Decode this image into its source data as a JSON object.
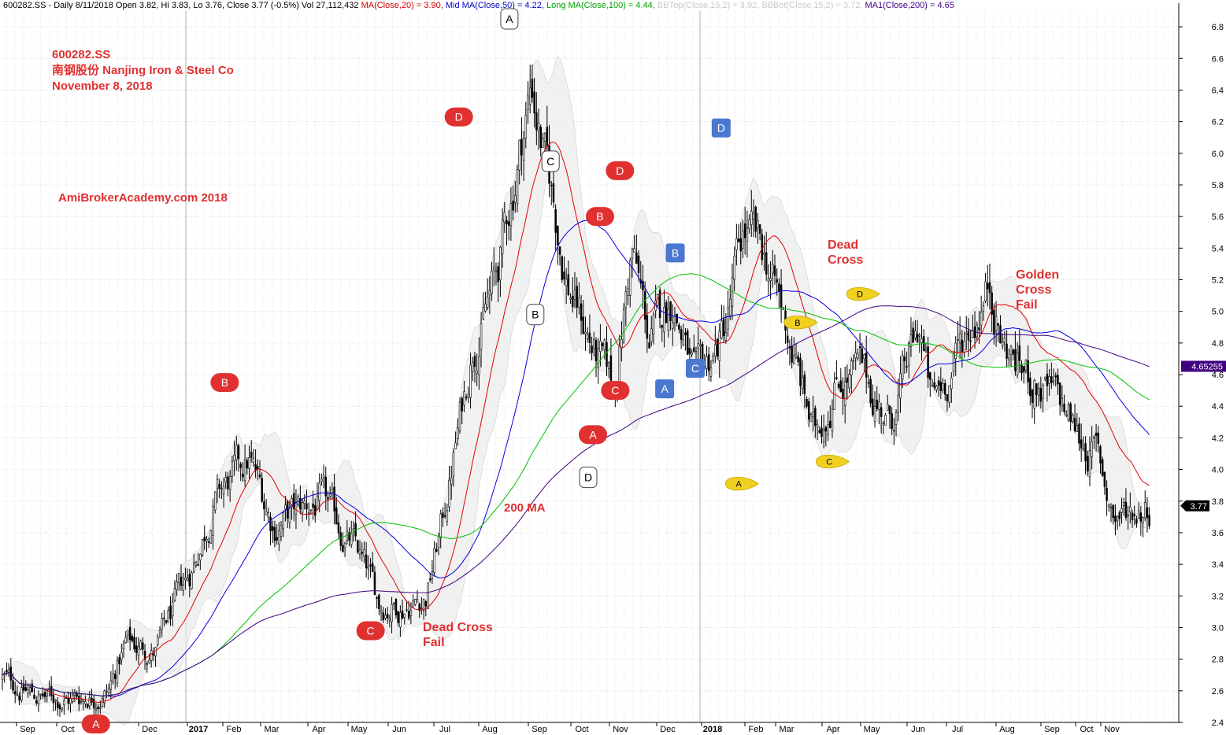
{
  "header": {
    "segments": [
      {
        "text": "600282.SS - Daily 8/11/2018 Open 3.82, Hi 3.83, Lo 3.76, Close 3.77 (-0.5%) Vol 27,112,432 ",
        "color": "#000000"
      },
      {
        "text": "MA(Close,20) = 3.90, ",
        "color": "#d00000"
      },
      {
        "text": "Mid MA(Close,50) = 4.22, ",
        "color": "#0000c0"
      },
      {
        "text": "Long MA(Close,100) = 4.44, ",
        "color": "#00a000"
      },
      {
        "text": "BBTop(Close,15,2) = 3.92, ",
        "color": "#c8c8c8"
      },
      {
        "text": "BBBot(Close,15,2) = 3.72, ",
        "color": "#c8c8c8"
      },
      {
        "text": "MA1(Close,200) = 4.65",
        "color": "#400080"
      }
    ]
  },
  "annotations": {
    "title_lines": [
      "600282.SS",
      "南钢股份  Nanjing Iron & Steel Co",
      "November 8, 2018"
    ],
    "site": "AmiBrokerAcademy.com  2018",
    "ma200": "200 MA",
    "dead_cross_fail": [
      "Dead Cross",
      "Fail"
    ],
    "dead_cross": [
      "Dead",
      "Cross"
    ],
    "golden_cross_fail": [
      "Golden",
      "Cross",
      "Fail"
    ]
  },
  "colors": {
    "ma20": "#e00000",
    "ma50": "#0000e0",
    "ma100": "#00c000",
    "ma200": "#400080",
    "annotation_text": "#e03030",
    "red_marker": "#e03030",
    "blue_marker": "#4a78d0",
    "yellow_marker": "#f0d020",
    "last_ma200_tag": "#400080",
    "last_close_tag": "#000000"
  },
  "chart_data": {
    "type": "candlestick",
    "symbol": "600282.SS",
    "ylim": [
      2.4,
      6.9
    ],
    "y_ticks": [
      2.4,
      2.6,
      2.8,
      3.0,
      3.2,
      3.4,
      3.6,
      3.8,
      4.0,
      4.2,
      4.4,
      4.6,
      4.8,
      5.0,
      5.2,
      5.4,
      5.6,
      5.8,
      6.0,
      6.2,
      6.4,
      6.6,
      6.8
    ],
    "x_labels": [
      {
        "label": "Sep",
        "bold": false
      },
      {
        "label": "Oct",
        "bold": false
      },
      {
        "label": "Dec",
        "bold": false
      },
      {
        "label": "2017",
        "bold": true
      },
      {
        "label": "Feb",
        "bold": false
      },
      {
        "label": "Mar",
        "bold": false
      },
      {
        "label": "Apr",
        "bold": false
      },
      {
        "label": "May",
        "bold": false
      },
      {
        "label": "Jun",
        "bold": false
      },
      {
        "label": "Jul",
        "bold": false
      },
      {
        "label": "Aug",
        "bold": false
      },
      {
        "label": "Sep",
        "bold": false
      },
      {
        "label": "Oct",
        "bold": false
      },
      {
        "label": "Nov",
        "bold": false
      },
      {
        "label": "Dec",
        "bold": false
      },
      {
        "label": "2018",
        "bold": true
      },
      {
        "label": "Feb",
        "bold": false
      },
      {
        "label": "Mar",
        "bold": false
      },
      {
        "label": "Apr",
        "bold": false
      },
      {
        "label": "May",
        "bold": false
      },
      {
        "label": "Jun",
        "bold": false
      },
      {
        "label": "Jul",
        "bold": false
      },
      {
        "label": "Aug",
        "bold": false
      },
      {
        "label": "Sep",
        "bold": false
      },
      {
        "label": "Oct",
        "bold": false
      },
      {
        "label": "Nov",
        "bold": false
      }
    ],
    "price_path": [
      [
        0,
        2.68
      ],
      [
        0.03,
        2.56
      ],
      [
        0.06,
        2.55
      ],
      [
        0.09,
        2.6
      ],
      [
        0.105,
        2.9
      ],
      [
        0.13,
        2.85
      ],
      [
        0.16,
        3.35
      ],
      [
        0.18,
        3.8
      ],
      [
        0.21,
        4.05
      ],
      [
        0.23,
        3.65
      ],
      [
        0.27,
        3.8
      ],
      [
        0.3,
        3.5
      ],
      [
        0.32,
        3.15
      ],
      [
        0.34,
        3.15
      ],
      [
        0.36,
        3.2
      ],
      [
        0.375,
        3.7
      ],
      [
        0.4,
        4.8
      ],
      [
        0.42,
        5.2
      ],
      [
        0.45,
        6.45
      ],
      [
        0.46,
        6.0
      ],
      [
        0.48,
        5.2
      ],
      [
        0.505,
        4.7
      ],
      [
        0.52,
        4.5
      ],
      [
        0.535,
        5.4
      ],
      [
        0.55,
        4.8
      ],
      [
        0.57,
        5.1
      ],
      [
        0.59,
        4.5
      ],
      [
        0.615,
        4.9
      ],
      [
        0.63,
        5.5
      ],
      [
        0.65,
        5.3
      ],
      [
        0.67,
        4.8
      ],
      [
        0.69,
        4.2
      ],
      [
        0.71,
        4.6
      ],
      [
        0.73,
        4.6
      ],
      [
        0.755,
        4.3
      ],
      [
        0.78,
        4.9
      ],
      [
        0.79,
        4.4
      ],
      [
        0.81,
        4.7
      ],
      [
        0.84,
        5.2
      ],
      [
        0.85,
        4.8
      ],
      [
        0.87,
        4.6
      ],
      [
        0.9,
        4.4
      ],
      [
        0.915,
        4.2
      ],
      [
        0.93,
        4.1
      ],
      [
        0.945,
        3.7
      ],
      [
        0.96,
        3.75
      ],
      [
        0.975,
        3.78
      ]
    ],
    "bollinger": {
      "period": 15,
      "std": 2
    },
    "moving_averages": [
      {
        "name": "MA(Close,20)",
        "period": 20,
        "last": 3.9
      },
      {
        "name": "Mid MA(Close,50)",
        "period": 50,
        "last": 4.22
      },
      {
        "name": "Long MA(Close,100)",
        "period": 100,
        "last": 4.44
      },
      {
        "name": "MA1(Close,200)",
        "period": 200,
        "last": 4.65
      }
    ],
    "last_ma200_label": "4.65255",
    "last_close_label": "3.77",
    "markers": [
      {
        "label": "A",
        "style": "red",
        "pos": [
          0.0795,
          2.39
        ]
      },
      {
        "label": "B",
        "style": "red",
        "pos": [
          0.189,
          4.55
        ]
      },
      {
        "label": "C",
        "style": "red",
        "pos": [
          0.313,
          2.98
        ]
      },
      {
        "label": "D",
        "style": "red",
        "pos": [
          0.388,
          6.23
        ]
      },
      {
        "label": "A",
        "style": "white",
        "pos": [
          0.431,
          6.85
        ]
      },
      {
        "label": "C",
        "style": "white",
        "pos": [
          0.466,
          5.95
        ]
      },
      {
        "label": "B",
        "style": "white",
        "pos": [
          0.453,
          4.98
        ]
      },
      {
        "label": "D",
        "style": "white",
        "pos": [
          0.498,
          3.95
        ]
      },
      {
        "label": "A",
        "style": "red",
        "pos": [
          0.502,
          4.22
        ]
      },
      {
        "label": "B",
        "style": "red",
        "pos": [
          0.508,
          5.6
        ]
      },
      {
        "label": "C",
        "style": "red",
        "pos": [
          0.521,
          4.5
        ]
      },
      {
        "label": "D",
        "style": "red",
        "pos": [
          0.525,
          5.89
        ]
      },
      {
        "label": "A",
        "style": "blue",
        "pos": [
          0.563,
          4.51
        ]
      },
      {
        "label": "B",
        "style": "blue",
        "pos": [
          0.572,
          5.37
        ]
      },
      {
        "label": "C",
        "style": "blue",
        "pos": [
          0.589,
          4.64
        ]
      },
      {
        "label": "D",
        "style": "blue",
        "pos": [
          0.611,
          6.16
        ]
      },
      {
        "label": "A",
        "style": "yellow",
        "pos": [
          0.628,
          3.91
        ]
      },
      {
        "label": "B",
        "style": "yellow",
        "pos": [
          0.678,
          4.93
        ]
      },
      {
        "label": "C",
        "style": "yellow",
        "pos": [
          0.705,
          4.05
        ]
      },
      {
        "label": "D",
        "style": "yellow",
        "pos": [
          0.731,
          5.11
        ]
      }
    ]
  }
}
